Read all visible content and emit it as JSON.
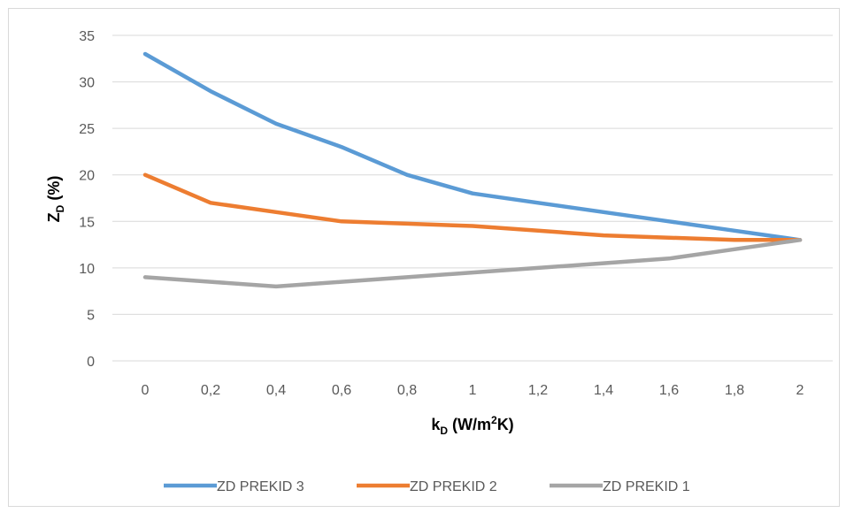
{
  "chart_data": {
    "type": "line",
    "x": [
      0,
      0.2,
      0.4,
      0.6,
      0.8,
      1,
      1.2,
      1.4,
      1.6,
      1.8,
      2
    ],
    "x_tick_labels": [
      "0",
      "0,2",
      "0,4",
      "0,6",
      "0,8",
      "1",
      "1,2",
      "1,4",
      "1,6",
      "1,8",
      "2"
    ],
    "y_ticks": [
      0,
      5,
      10,
      15,
      20,
      25,
      30,
      35
    ],
    "ylim": [
      0,
      35
    ],
    "xlabel": {
      "main": "k",
      "sub": "D",
      "rest": " (W/m",
      "sup": "2",
      "end": "K)"
    },
    "ylabel": {
      "main": "Z",
      "sub": "D",
      "rest": " (%)"
    },
    "grid": "horizontal",
    "legend_position": "bottom",
    "series": [
      {
        "name": "ZD PREKID 3",
        "color": "#5b9bd5",
        "values": [
          33,
          29,
          25.5,
          23,
          20,
          18,
          17,
          16,
          15,
          14,
          13
        ]
      },
      {
        "name": "ZD PREKID 2",
        "color": "#ed7d31",
        "values": [
          20,
          17,
          16,
          15,
          14.75,
          14.5,
          14,
          13.5,
          13.25,
          13,
          13
        ]
      },
      {
        "name": "ZD PREKID 1",
        "color": "#a5a5a5",
        "values": [
          9,
          8.5,
          8,
          8.5,
          9,
          9.5,
          10,
          10.5,
          11,
          12,
          13
        ]
      }
    ]
  }
}
